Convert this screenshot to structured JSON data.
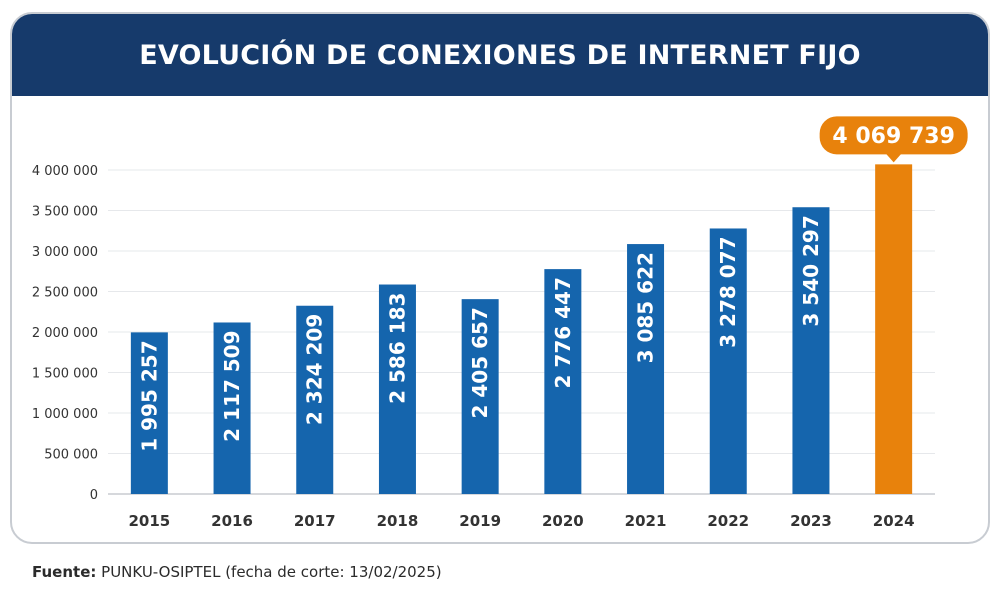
{
  "chart_data": {
    "type": "bar",
    "title": "EVOLUCIÓN DE CONEXIONES DE INTERNET FIJO",
    "categories": [
      "2015",
      "2016",
      "2017",
      "2018",
      "2019",
      "2020",
      "2021",
      "2022",
      "2023",
      "2024"
    ],
    "values": [
      1995257,
      2117509,
      2324209,
      2586183,
      2405657,
      2776447,
      3085622,
      3278077,
      3540297,
      4069739
    ],
    "value_labels": [
      "1 995 257",
      "2 117 509",
      "2 324 209",
      "2 586 183",
      "2 405 657",
      "2 776 447",
      "3 085 622",
      "3 278 077",
      "3 540 297",
      "4 069 739"
    ],
    "ylim": [
      0,
      4000000
    ],
    "yticks": [
      0,
      500000,
      1000000,
      1500000,
      2000000,
      2500000,
      3000000,
      3500000,
      4000000
    ],
    "ytick_labels": [
      "0",
      "500 000",
      "1 000 000",
      "1 500 000",
      "2 000 000",
      "2 500 000",
      "3 000 000",
      "3 500 000",
      "4 000 000"
    ],
    "grid": true,
    "colors": {
      "bar": "#1565ad",
      "highlight": "#e8820c",
      "header": "#163a6b"
    },
    "highlight_index": 9
  },
  "source": {
    "label": "Fuente:",
    "text": " PUNKU-OSIPTEL (fecha de corte: 13/02/2025)"
  }
}
